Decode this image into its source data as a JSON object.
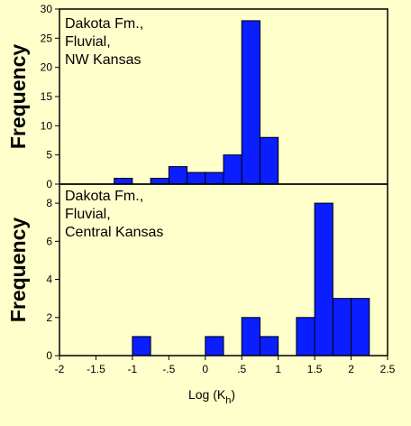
{
  "colors": {
    "background": "#FFFFCC",
    "bar": "#0A1EFF"
  },
  "xlabel": "Log (K",
  "xlabel_sub": "h",
  "xlabel_close": ")",
  "chart_data": [
    {
      "type": "bar",
      "annotation": [
        "Dakota Fm.,",
        "Fluvial,",
        "NW Kansas"
      ],
      "ylabel": "Frequency",
      "ylim": [
        0,
        30
      ],
      "yticks": [
        0,
        5,
        10,
        15,
        20,
        25,
        30
      ],
      "ytick_labels": [
        "0",
        "5",
        "10",
        "15",
        "20",
        "25",
        "30"
      ],
      "xlim": [
        -2,
        2.5
      ],
      "bin_width": 0.25,
      "bars": [
        {
          "x": -1.125,
          "value": 1
        },
        {
          "x": -0.625,
          "value": 1
        },
        {
          "x": -0.375,
          "value": 3
        },
        {
          "x": -0.125,
          "value": 2
        },
        {
          "x": 0.125,
          "value": 2
        },
        {
          "x": 0.375,
          "value": 5
        },
        {
          "x": 0.625,
          "value": 28
        },
        {
          "x": 0.875,
          "value": 8
        }
      ]
    },
    {
      "type": "bar",
      "annotation": [
        "Dakota Fm.,",
        "Fluvial,",
        "Central Kansas"
      ],
      "ylabel": "Frequency",
      "ylim": [
        0,
        9
      ],
      "yticks": [
        0,
        2,
        4,
        6,
        8
      ],
      "ytick_labels": [
        "0",
        "2",
        "4",
        "6",
        "8"
      ],
      "xlim": [
        -2,
        2.5
      ],
      "bin_width": 0.25,
      "xticks": [
        -2,
        -1.5,
        -1,
        -0.5,
        0,
        0.5,
        1,
        1.5,
        2,
        2.5
      ],
      "xtick_labels": [
        "-2",
        "-1.5",
        "-1",
        "-.5",
        "0",
        ".5",
        "1",
        "1.5",
        "2",
        "2.5"
      ],
      "bars": [
        {
          "x": -0.875,
          "value": 1
        },
        {
          "x": 0.125,
          "value": 1
        },
        {
          "x": 0.625,
          "value": 2
        },
        {
          "x": 0.875,
          "value": 1
        },
        {
          "x": 1.375,
          "value": 2
        },
        {
          "x": 1.625,
          "value": 8
        },
        {
          "x": 1.875,
          "value": 3
        },
        {
          "x": 2.125,
          "value": 3
        }
      ]
    }
  ]
}
